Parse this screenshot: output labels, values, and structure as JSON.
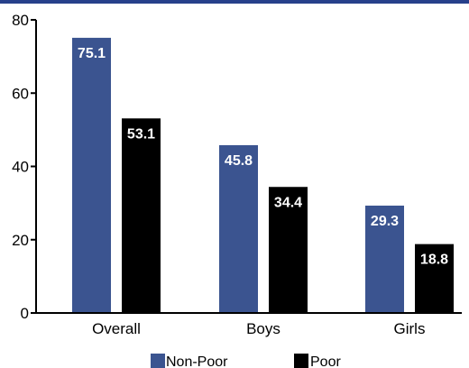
{
  "colors": {
    "non_poor": "#3b5490",
    "poor": "#000000",
    "top_strip": "#27408b"
  },
  "chart_data": {
    "type": "bar",
    "categories": [
      "Overall",
      "Boys",
      "Girls"
    ],
    "series": [
      {
        "name": "Non-Poor",
        "values": [
          75.1,
          45.8,
          29.3
        ],
        "labels": [
          "75.1",
          "45.8",
          "29.3"
        ]
      },
      {
        "name": "Poor",
        "values": [
          53.1,
          34.4,
          18.8
        ],
        "labels": [
          "53.1",
          "34.4",
          "18.8"
        ]
      }
    ],
    "ylim": [
      0,
      80
    ],
    "yticks": [
      0,
      20,
      40,
      60,
      80
    ],
    "ytick_labels": [
      "0",
      "20",
      "40",
      "60",
      "80"
    ],
    "legend": [
      "Non-Poor",
      "Poor"
    ],
    "legend_position": "bottom",
    "grid": false
  }
}
